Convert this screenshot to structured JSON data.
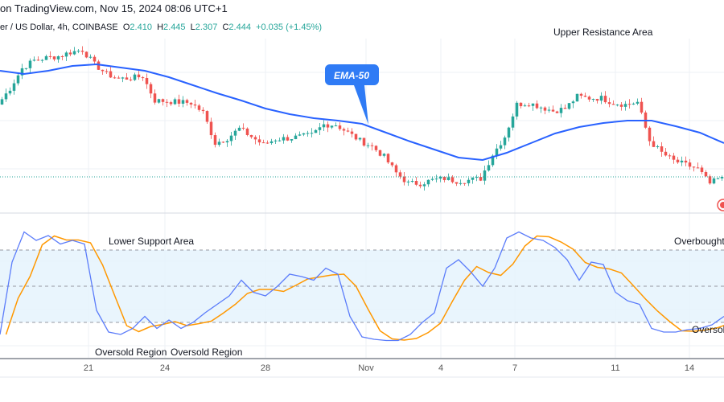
{
  "header": {
    "title": "on TradingView.com, Nov 15, 2024 08:06 UTC+1"
  },
  "legend": {
    "symbol": "er / US Dollar, 4h, COINBASE",
    "o_label": "O",
    "o": "2.410",
    "h_label": "H",
    "h": "2.445",
    "l_label": "L",
    "l": "2.307",
    "c_label": "C",
    "c": "2.444",
    "change": "+0.035 (+1.45%)"
  },
  "colors": {
    "up": "#26a69a",
    "down": "#ef5350",
    "ema": "#2962ff",
    "k": "#5b7cfa",
    "d": "#ff9800",
    "band": "#e3f2fd",
    "callout": "#2f7bf5"
  },
  "annotations": {
    "upper_resistance": "Upper Resistance Area",
    "lower_support": "Lower Support Area",
    "overbought": "Overbought",
    "oversold_1": "Oversold Region",
    "oversold_2": "Oversold Region",
    "oversold_right": "Oversold",
    "ema_callout": "EMA-50"
  },
  "chart_data": [
    {
      "type": "candlestick",
      "title": "",
      "last_price": 2.444,
      "closes": [
        2.804,
        2.884,
        2.984,
        3.024,
        3.036,
        3.044,
        3.064,
        3.076,
        3.004,
        2.956,
        2.932,
        2.936,
        2.944,
        2.824,
        2.82,
        2.816,
        2.812,
        2.764,
        2.612,
        2.636,
        2.684,
        2.644,
        2.604,
        2.632,
        2.636,
        2.644,
        2.652,
        2.704,
        2.704,
        2.664,
        2.624,
        2.596,
        2.544,
        2.464,
        2.412,
        2.412,
        2.428,
        2.436,
        2.424,
        2.428,
        2.436,
        2.556,
        2.644,
        2.804,
        2.812,
        2.792,
        2.772,
        2.784,
        2.844,
        2.836,
        2.836,
        2.812,
        2.804,
        2.816,
        2.624,
        2.564,
        2.524,
        2.504,
        2.484,
        2.41,
        2.444
      ],
      "ema_50": {
        "name": "EMA-50",
        "values": [
          2.972,
          2.956,
          2.972,
          2.996,
          3.004,
          2.988,
          2.972,
          2.94,
          2.9,
          2.86,
          2.824,
          2.784,
          2.756,
          2.736,
          2.724,
          2.708,
          2.664,
          2.62,
          2.58,
          2.54,
          2.528,
          2.564,
          2.612,
          2.66,
          2.692,
          2.712,
          2.724,
          2.724,
          2.696,
          2.664,
          2.612
        ]
      },
      "x_ticks": [
        "21",
        "24",
        "28",
        "Nov",
        "4",
        "7",
        "11",
        "14"
      ]
    },
    {
      "type": "line",
      "title": "",
      "ylim": [
        0,
        100
      ],
      "levels": [
        80,
        50,
        20
      ],
      "k": [
        10,
        70,
        95,
        88,
        92,
        85,
        88,
        85,
        30,
        12,
        10,
        15,
        25,
        15,
        22,
        15,
        20,
        28,
        35,
        42,
        55,
        45,
        42,
        50,
        60,
        58,
        55,
        65,
        60,
        25,
        8,
        6,
        5,
        5,
        10,
        20,
        28,
        65,
        72,
        62,
        50,
        65,
        90,
        95,
        90,
        88,
        82,
        72,
        55,
        70,
        68,
        45,
        38,
        35,
        15,
        12,
        12,
        14,
        15,
        18,
        25
      ]
    }
  ]
}
